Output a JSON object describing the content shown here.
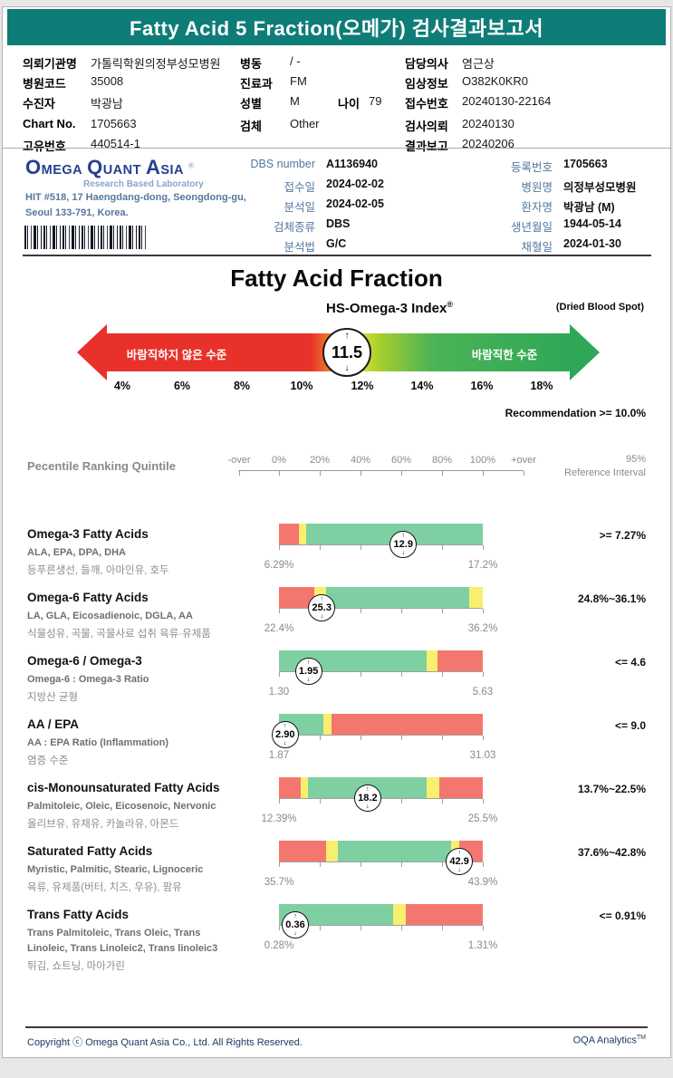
{
  "header": {
    "title": "Fatty Acid 5 Fraction(오메가) 검사결과보고서"
  },
  "patient": {
    "left": [
      {
        "label": "의뢰기관명",
        "value": "가톨릭학원의정부성모병원"
      },
      {
        "label": "병원코드",
        "value": "35008"
      },
      {
        "label": "수진자",
        "value": "박광남"
      },
      {
        "label": "Chart No.",
        "value": "1705663"
      },
      {
        "label": "고유번호",
        "value": "440514-1"
      }
    ],
    "middle": [
      {
        "label": "병동",
        "value": "/ -"
      },
      {
        "label": "진료과",
        "value": "FM"
      },
      {
        "label": "성별",
        "value": "M",
        "extra_label": "나이",
        "extra_value": "79"
      },
      {
        "label": "검체",
        "value": "Other"
      }
    ],
    "right": [
      {
        "label": "담당의사",
        "value": "염근상"
      },
      {
        "label": "임상정보",
        "value": "O382K0KR0"
      },
      {
        "label": "접수번호",
        "value": "20240130-22164"
      },
      {
        "label": "검사의뢰",
        "value": "20240130"
      },
      {
        "label": "결과보고",
        "value": "20240206"
      }
    ]
  },
  "lab": {
    "logo_words": [
      "OMEGA",
      "QUANT",
      "ASIA"
    ],
    "logo_reg": "®",
    "logo_sub": "Research Based Laboratory",
    "address1": "HIT #518, 17 Haengdang-dong, Seongdong-gu,",
    "address2": "Seoul 133-791, Korea.",
    "mid": [
      {
        "label": "DBS number",
        "value": "A1136940"
      },
      {
        "label": "접수일",
        "value": "2024-02-02"
      },
      {
        "label": "분석일",
        "value": "2024-02-05"
      },
      {
        "label": "검체종류",
        "value": "DBS"
      },
      {
        "label": "분석법",
        "value": "G/C"
      }
    ],
    "right": [
      {
        "label": "등록번호",
        "value": "1705663"
      },
      {
        "label": "병원명",
        "value": "의정부성모병원"
      },
      {
        "label": "환자명",
        "value": "박광남 (M)"
      },
      {
        "label": "생년월일",
        "value": "1944-05-14"
      },
      {
        "label": "채혈일",
        "value": "2024-01-30"
      }
    ]
  },
  "fraction": {
    "title": "Fatty Acid Fraction",
    "index_title": "HS-Omega-3 Index",
    "index_reg": "®",
    "index_note": "(Dried Blood Spot)",
    "recommendation": "Recommendation  >= 10.0%",
    "gauge": {
      "value": "11.5",
      "value_pct": 11.5,
      "min_pct": 4,
      "max_pct": 18,
      "left_label": "바람직하지 않은 수준",
      "right_label": "바람직한 수준",
      "ticks": [
        "4%",
        "6%",
        "8%",
        "10%",
        "12%",
        "14%",
        "16%",
        "18%"
      ]
    }
  },
  "quintile": {
    "heading": "Pecentile Ranking Quintile",
    "scale_labels": [
      "-over",
      "0%",
      "20%",
      "40%",
      "60%",
      "80%",
      "100%",
      "+over"
    ],
    "ref_header_line1": "95%",
    "ref_header_line2": "Reference Interval",
    "rows": [
      {
        "title": "Omega-3 Fatty Acids",
        "subs": [
          "ALA, EPA, DPA, DHA"
        ],
        "kr": [
          "등푸른생선, 들깨, 아마인유, 호두"
        ],
        "value": "12.9",
        "marker_pct": 61,
        "segments": [
          {
            "color": "red",
            "from": 0,
            "to": 9.8
          },
          {
            "color": "yellow",
            "from": 9.8,
            "to": 13.3
          },
          {
            "color": "green",
            "from": 13.3,
            "to": 100
          }
        ],
        "range_low": "6.29%",
        "range_high": "17.2%",
        "reference": ">= 7.27%"
      },
      {
        "title": "Omega-6 Fatty Acids",
        "subs": [
          "LA, GLA, Eicosadienoic, DGLA, AA"
        ],
        "kr": [
          "식물성유, 곡물, 곡물사료 섭취 육류·유제품"
        ],
        "value": "25.3",
        "marker_pct": 21,
        "segments": [
          {
            "color": "red",
            "from": 0,
            "to": 17.3
          },
          {
            "color": "yellow",
            "from": 17.3,
            "to": 23
          },
          {
            "color": "green",
            "from": 23,
            "to": 93.3
          },
          {
            "color": "yellow",
            "from": 93.3,
            "to": 100
          }
        ],
        "range_low": "22.4%",
        "range_high": "36.2%",
        "reference": "24.8%~36.1%"
      },
      {
        "title": "Omega-6 / Omega-3",
        "subs": [
          "Omega-6 : Omega-3 Ratio"
        ],
        "kr": [
          "지방산 균형"
        ],
        "value": "1.95",
        "marker_pct": 14.5,
        "segments": [
          {
            "color": "green",
            "from": 0,
            "to": 72.4
          },
          {
            "color": "yellow",
            "from": 72.4,
            "to": 77.6
          },
          {
            "color": "red",
            "from": 77.6,
            "to": 100
          }
        ],
        "range_low": "1.30",
        "range_high": "5.63",
        "reference": "<= 4.6"
      },
      {
        "title": "AA / EPA",
        "subs": [
          "AA : EPA Ratio (Inflammation)"
        ],
        "kr": [
          "염증 수준"
        ],
        "value": "2.90",
        "marker_pct": 3,
        "segments": [
          {
            "color": "green",
            "from": 0,
            "to": 21.8
          },
          {
            "color": "yellow",
            "from": 21.8,
            "to": 25.8
          },
          {
            "color": "red",
            "from": 25.8,
            "to": 100
          }
        ],
        "range_low": "1.87",
        "range_high": "31.03",
        "reference": "<= 9.0"
      },
      {
        "title": "cis-Monounsaturated Fatty Acids",
        "subs": [
          "Palmitoleic, Oleic, Eicosenoic, Nervonic"
        ],
        "kr": [
          "올리브유, 유채유, 카놀라유, 아몬드"
        ],
        "value": "18.2",
        "marker_pct": 43.5,
        "segments": [
          {
            "color": "red",
            "from": 0,
            "to": 10.5
          },
          {
            "color": "yellow",
            "from": 10.5,
            "to": 14.2
          },
          {
            "color": "green",
            "from": 14.2,
            "to": 72.4
          },
          {
            "color": "yellow",
            "from": 72.4,
            "to": 78.7
          },
          {
            "color": "red",
            "from": 78.7,
            "to": 100
          }
        ],
        "range_low": "12.39%",
        "range_high": "25.5%",
        "reference": "13.7%~22.5%"
      },
      {
        "title": "Saturated Fatty Acids",
        "subs": [
          "Myristic, Palmitic, Stearic, Lignoceric"
        ],
        "kr": [
          "육류, 유제품(버터, 치즈, 우유), 팜유"
        ],
        "value": "42.9",
        "marker_pct": 88.5,
        "segments": [
          {
            "color": "red",
            "from": 0,
            "to": 23
          },
          {
            "color": "yellow",
            "from": 23,
            "to": 29
          },
          {
            "color": "green",
            "from": 29,
            "to": 84.5
          },
          {
            "color": "yellow",
            "from": 84.5,
            "to": 88.3
          },
          {
            "color": "red",
            "from": 88.3,
            "to": 100
          }
        ],
        "range_low": "35.7%",
        "range_high": "43.9%",
        "reference": "37.6%~42.8%"
      },
      {
        "title": "Trans Fatty Acids",
        "subs": [
          "Trans Palmitoleic, Trans Oleic, Trans",
          "Linoleic, Trans Linoleic2, Trans linoleic3"
        ],
        "kr": [
          "튀김, 쇼트닝, 마아가린"
        ],
        "value": "0.36",
        "marker_pct": 8,
        "segments": [
          {
            "color": "green",
            "from": 0,
            "to": 56
          },
          {
            "color": "yellow",
            "from": 56,
            "to": 62
          },
          {
            "color": "red",
            "from": 62,
            "to": 100
          }
        ],
        "range_low": "0.28%",
        "range_high": "1.31%",
        "reference": "<= 0.91%"
      }
    ]
  },
  "footer": {
    "copyright": "Copyright ⓒ Omega Quant Asia Co., Ltd.  All Rights Reserved.",
    "brand": "OQA Analytics",
    "brand_tm": "TM"
  },
  "colors": {
    "teal": "#0E7D78",
    "navy_logo": "#25408F",
    "label_blue": "#5577A0",
    "bar_red": "#F4776F",
    "bar_yellow": "#F8EF6E",
    "bar_green": "#7ED0A3",
    "gauge_red": "#E8312A",
    "gauge_green": "#2EA857",
    "footer_navy": "#1F3864"
  }
}
